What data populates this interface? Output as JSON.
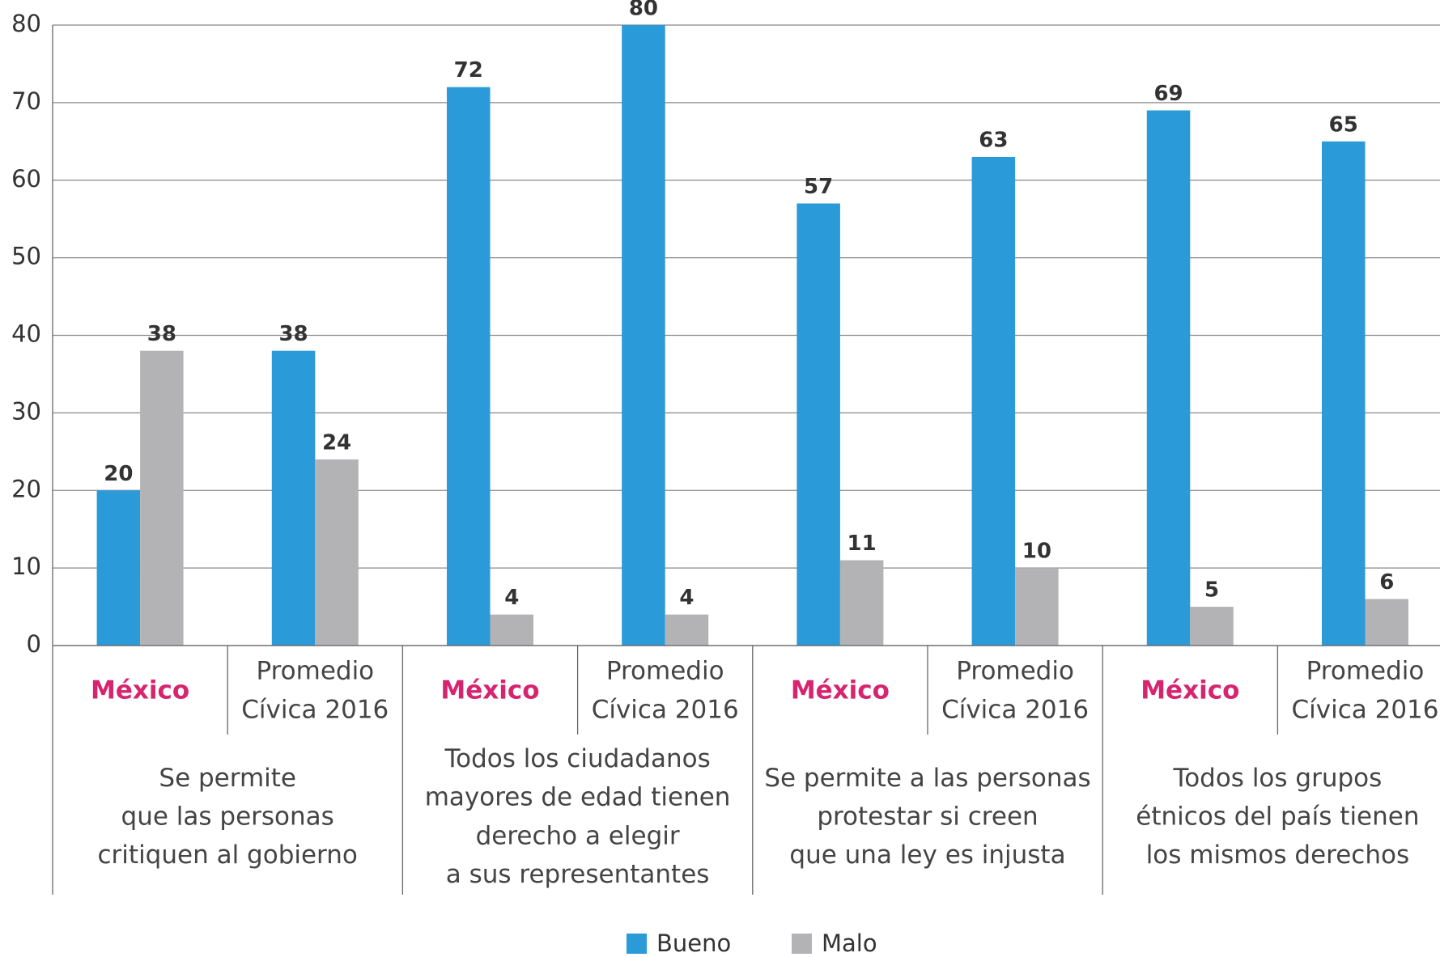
{
  "chart_data": {
    "type": "bar",
    "categories": [
      [
        "México"
      ],
      [
        "Promedio",
        "Cívica 2016"
      ],
      [
        "México"
      ],
      [
        "Promedio",
        "Cívica 2016"
      ],
      [
        "México"
      ],
      [
        "Promedio",
        "Cívica 2016"
      ],
      [
        "México"
      ],
      [
        "Promedio",
        "Cívica 2016"
      ]
    ],
    "groups": [
      [
        "Se permite",
        "que las personas",
        "critiquen al gobierno"
      ],
      [
        "Todos los ciudadanos",
        "mayores de edad tienen",
        "derecho a elegir",
        "a sus representantes"
      ],
      [
        "Se permite a las personas",
        "protestar si creen",
        "que una ley es injusta"
      ],
      [
        "Todos los grupos",
        "étnicos del país tienen",
        "los mismos derechos"
      ]
    ],
    "series": [
      {
        "name": "Bueno",
        "color": "#2a9ad8",
        "values": [
          20,
          38,
          72,
          80,
          57,
          63,
          69,
          65
        ]
      },
      {
        "name": "Malo",
        "color": "#b3b3b6",
        "values": [
          38,
          24,
          4,
          4,
          11,
          10,
          5,
          6
        ]
      }
    ],
    "ylim": [
      0,
      80
    ],
    "yticks": [
      0,
      10,
      20,
      30,
      40,
      50,
      60,
      70,
      80
    ],
    "grid": true,
    "legend": "bottom"
  }
}
